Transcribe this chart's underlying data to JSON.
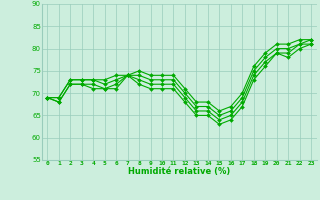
{
  "xlabel": "Humidité relative (%)",
  "background_color": "#cceedd",
  "grid_color": "#99ccbb",
  "line_color": "#00aa00",
  "ylim": [
    55,
    90
  ],
  "yticks": [
    55,
    60,
    65,
    70,
    75,
    80,
    85,
    90
  ],
  "xlim": [
    -0.5,
    23.5
  ],
  "xticks": [
    0,
    1,
    2,
    3,
    4,
    5,
    6,
    7,
    8,
    9,
    10,
    11,
    12,
    13,
    14,
    15,
    16,
    17,
    18,
    19,
    20,
    21,
    22,
    23
  ],
  "line1": [
    69,
    68,
    72,
    72,
    71,
    71,
    71,
    74,
    72,
    71,
    71,
    71,
    68,
    65,
    65,
    63,
    64,
    67,
    73,
    76,
    79,
    78,
    80,
    81
  ],
  "line2": [
    69,
    68,
    72,
    72,
    72,
    71,
    72,
    74,
    73,
    72,
    72,
    72,
    69,
    66,
    66,
    64,
    65,
    68,
    74,
    77,
    79,
    79,
    81,
    81
  ],
  "line3": [
    69,
    69,
    73,
    73,
    73,
    72,
    73,
    74,
    74,
    73,
    73,
    73,
    70,
    67,
    67,
    65,
    66,
    69,
    75,
    78,
    80,
    80,
    81,
    82
  ],
  "line4": [
    69,
    69,
    73,
    73,
    73,
    73,
    74,
    74,
    75,
    74,
    74,
    74,
    71,
    68,
    68,
    66,
    67,
    70,
    76,
    79,
    81,
    81,
    82,
    82
  ]
}
